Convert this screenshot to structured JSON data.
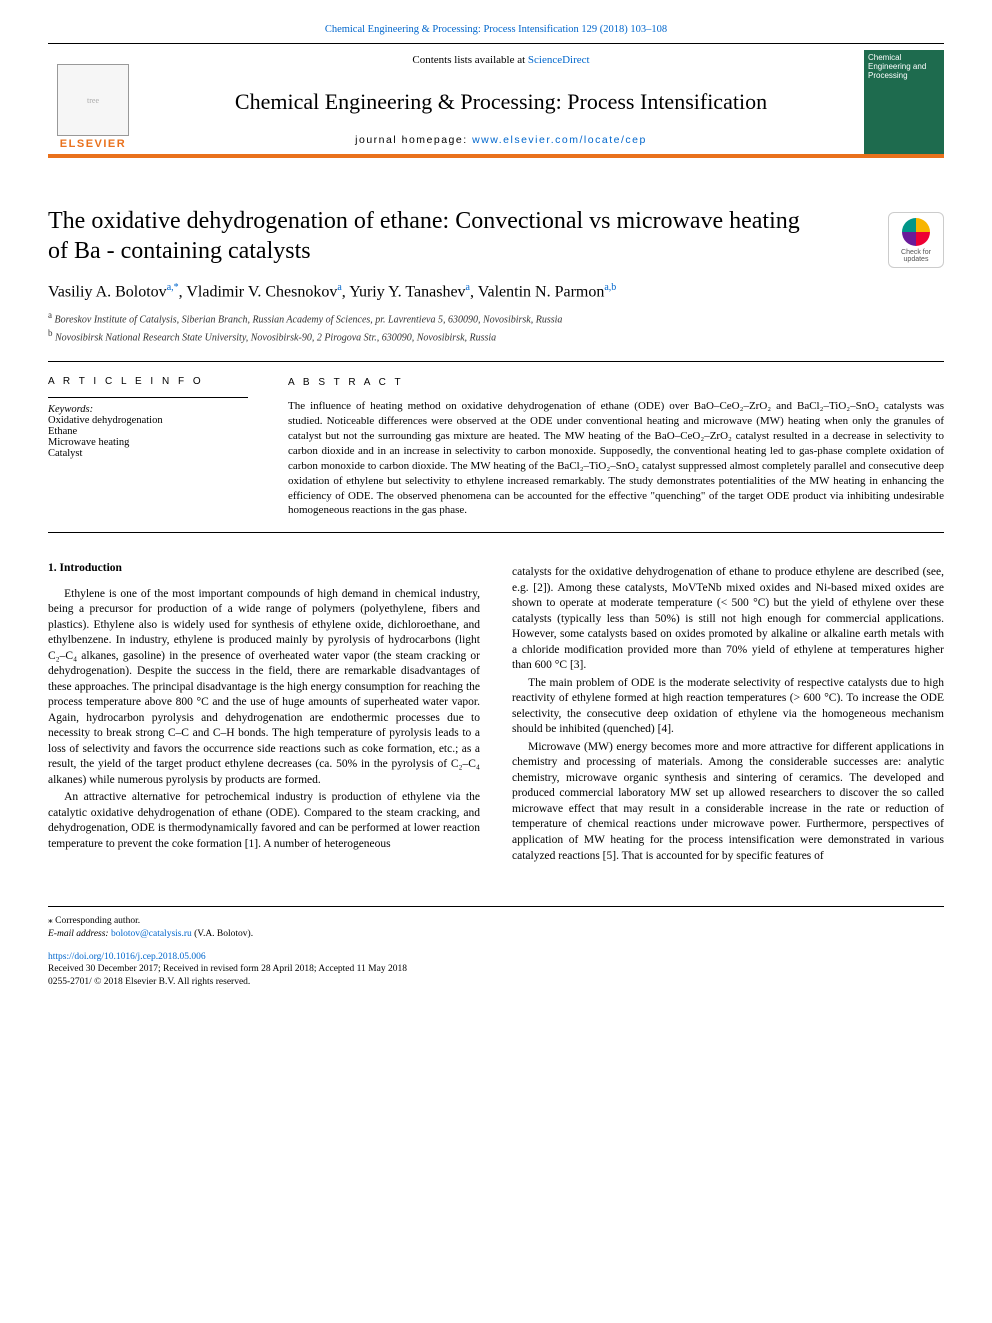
{
  "journal_ref": "Chemical Engineering & Processing: Process Intensification 129 (2018) 103–108",
  "header": {
    "contents_prefix": "Contents lists available at ",
    "contents_link": "ScienceDirect",
    "journal_title": "Chemical Engineering & Processing: Process Intensification",
    "homepage_prefix": "journal homepage: ",
    "homepage_link": "www.elsevier.com/locate/cep",
    "publisher": "ELSEVIER",
    "cover_text": "Chemical Engineering and Processing"
  },
  "title": "The oxidative dehydrogenation of ethane: Convectional vs microwave heating of Ba - containing catalysts",
  "check_updates": "Check for updates",
  "authors_html": "Vasiliy A. Bolotov<sup>a,*</sup>, Vladimir V. Chesnokov<sup>a</sup>, Yuriy Y. Tanashev<sup>a</sup>, Valentin N. Parmon<sup>a,b</sup>",
  "affiliations": {
    "a": "Boreskov Institute of Catalysis, Siberian Branch, Russian Academy of Sciences, pr. Lavrentieva 5, 630090, Novosibirsk, Russia",
    "b": "Novosibirsk National Research State University, Novosibirsk-90, 2 Pirogova Str., 630090, Novosibirsk, Russia"
  },
  "article_info_head": "A R T I C L E  I N F O",
  "abstract_head": "A B S T R A C T",
  "keywords_label": "Keywords:",
  "keywords": [
    "Oxidative dehydrogenation",
    "Ethane",
    "Microwave heating",
    "Catalyst"
  ],
  "abstract": "The influence of heating method on oxidative dehydrogenation of ethane (ODE) over BaO–CeO₂–ZrO₂ and BaCl₂–TiO₂–SnO₂ catalysts was studied. Noticeable differences were observed at the ODE under conventional heating and microwave (MW) heating when only the granules of catalyst but not the surrounding gas mixture are heated. The MW heating of the BaO–CeO₂–ZrO₂ catalyst resulted in a decrease in selectivity to carbon dioxide and in an increase in selectivity to carbon monoxide. Supposedly, the conventional heating led to gas-phase complete oxidation of carbon monoxide to carbon dioxide. The MW heating of the BaCl₂–TiO₂–SnO₂ catalyst suppressed almost completely parallel and consecutive deep oxidation of ethylene but selectivity to ethylene increased remarkably. The study demonstrates potentialities of the MW heating in enhancing the efficiency of ODE. The observed phenomena can be accounted for the effective \"quenching\" of the target ODE product via inhibiting undesirable homogeneous reactions in the gas phase.",
  "section1_head": "1. Introduction",
  "col1": {
    "p1": "Ethylene is one of the most important compounds of high demand in chemical industry, being a precursor for production of a wide range of polymers (polyethylene, fibers and plastics). Ethylene also is widely used for synthesis of ethylene oxide, dichloroethane, and ethylbenzene. In industry, ethylene is produced mainly by pyrolysis of hydrocarbons (light C₂–C₄ alkanes, gasoline) in the presence of overheated water vapor (the steam cracking or dehydrogenation). Despite the success in the field, there are remarkable disadvantages of these approaches. The principal disadvantage is the high energy consumption for reaching the process temperature above 800 °C and the use of huge amounts of superheated water vapor. Again, hydrocarbon pyrolysis and dehydrogenation are endothermic processes due to necessity to break strong C–C and C–H bonds. The high temperature of pyrolysis leads to a loss of selectivity and favors the occurrence side reactions such as coke formation, etc.; as a result, the yield of the target product ethylene decreases (ca. 50% in the pyrolysis of C₂–C₄ alkanes) while numerous pyrolysis by products are formed.",
    "p2": "An attractive alternative for petrochemical industry is production of ethylene via the catalytic oxidative dehydrogenation of ethane (ODE). Compared to the steam cracking, and dehydrogenation, ODE is thermodynamically favored and can be performed at lower reaction temperature to prevent the coke formation [1]. A number of heterogeneous"
  },
  "col2": {
    "p1": "catalysts for the oxidative dehydrogenation of ethane to produce ethylene are described (see, e.g. [2]). Among these catalysts, MoVTeNb mixed oxides and Ni-based mixed oxides are shown to operate at moderate temperature (< 500 °C) but the yield of ethylene over these catalysts (typically less than 50%) is still not high enough for commercial applications. However, some catalysts based on oxides promoted by alkaline or alkaline earth metals with a chloride modification provided more than 70% yield of ethylene at temperatures higher than 600 °C [3].",
    "p2": "The main problem of ODE is the moderate selectivity of respective catalysts due to high reactivity of ethylene formed at high reaction temperatures (> 600 °C). To increase the ODE selectivity, the consecutive deep oxidation of ethylene via the homogeneous mechanism should be inhibited (quenched) [4].",
    "p3": "Microwave (MW) energy becomes more and more attractive for different applications in chemistry and processing of materials. Among the considerable successes are: analytic chemistry, microwave organic synthesis and sintering of ceramics. The developed and produced commercial laboratory MW set up allowed researchers to discover the so called microwave effect that may result in a considerable increase in the rate or reduction of temperature of chemical reactions under microwave power. Furthermore, perspectives of application of MW heating for the process intensification were demonstrated in various catalyzed reactions [5]. That is accounted for by specific features of"
  },
  "footer": {
    "corr_label": "⁎ Corresponding author.",
    "email_label": "E-mail address: ",
    "email": "bolotov@catalysis.ru",
    "email_suffix": " (V.A. Bolotov).",
    "doi": "https://doi.org/10.1016/j.cep.2018.05.006",
    "received": "Received 30 December 2017; Received in revised form 28 April 2018; Accepted 11 May 2018",
    "copyright": "0255-2701/ © 2018 Elsevier B.V. All rights reserved."
  },
  "colors": {
    "accent_orange": "#e9711c",
    "link_blue": "#0066cc",
    "cover_green": "#1e6b4e"
  }
}
